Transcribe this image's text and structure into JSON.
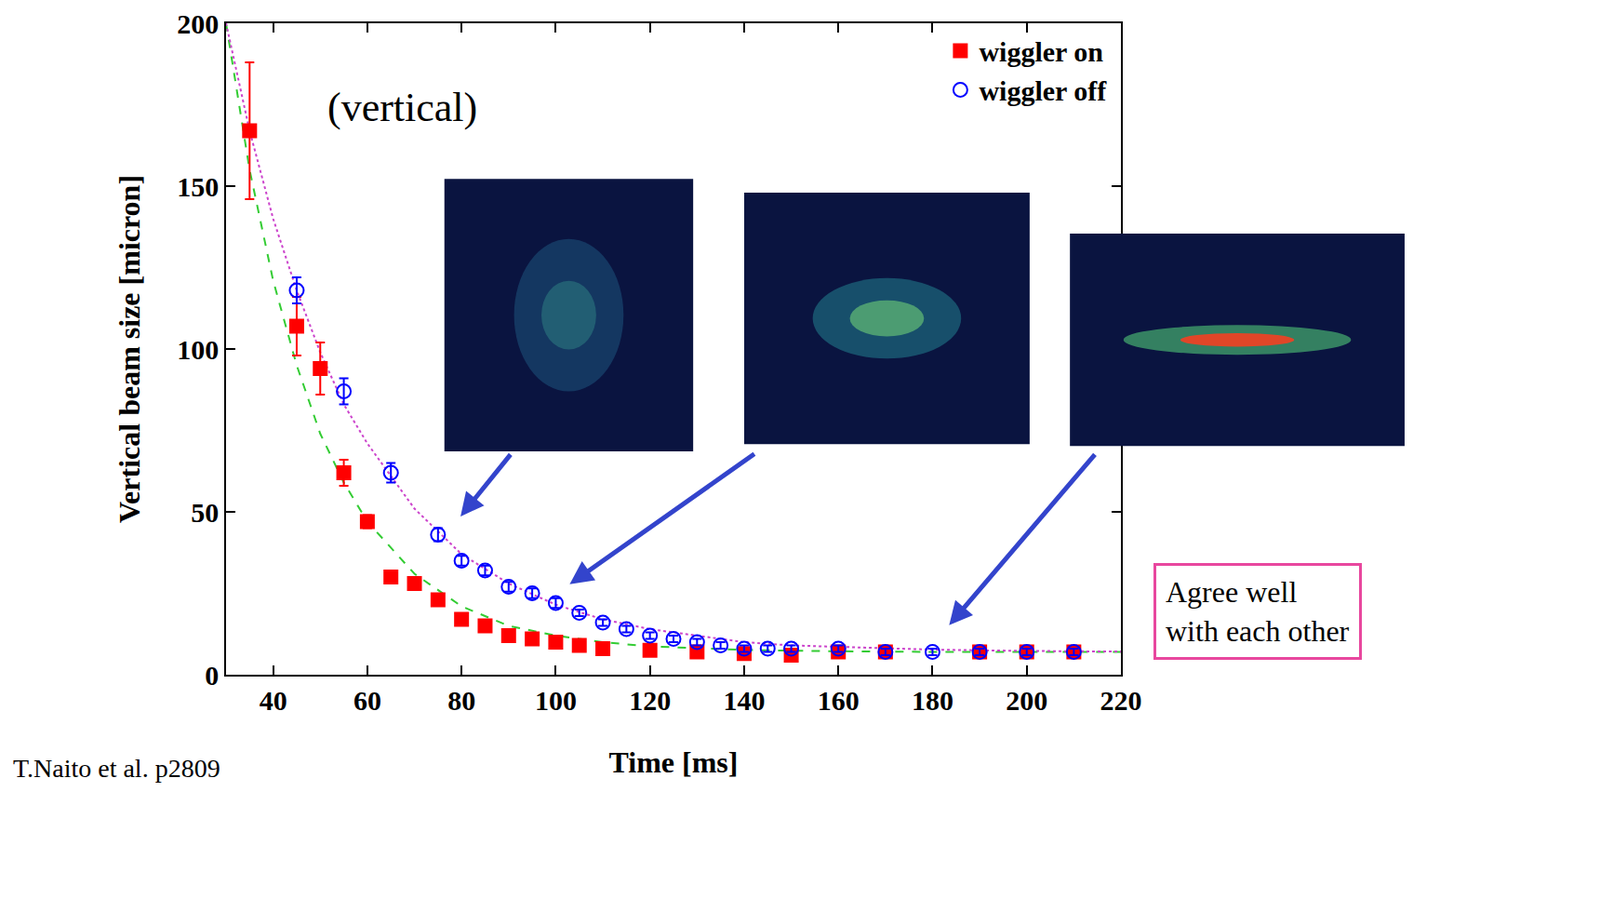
{
  "chart_data": {
    "type": "scatter",
    "x_label": "Time [ms]",
    "y_label": "Vertical beam size [micron]",
    "annotations": [
      "(vertical)",
      "Agree well with each other",
      "T.Naito et al. p2809"
    ],
    "xlim": [
      30,
      220
    ],
    "xticks": [
      40,
      60,
      80,
      100,
      120,
      140,
      160,
      180,
      200,
      220
    ],
    "ylim": [
      0,
      200
    ],
    "yticks": [
      0,
      50,
      100,
      150,
      200
    ],
    "grid": false,
    "legend": "upper right",
    "series": [
      {
        "name": "wiggler on",
        "type": "scatter",
        "color": "#ff0000",
        "marker": "square",
        "x": [
          35,
          45,
          50,
          55,
          60,
          65,
          70,
          75,
          80,
          85,
          90,
          95,
          100,
          105,
          110,
          120,
          130,
          140,
          150,
          160,
          170,
          190,
          200,
          210
        ],
        "values": [
          167,
          107,
          94,
          62,
          47,
          30,
          28,
          23,
          17,
          15,
          12,
          11,
          10,
          9,
          8,
          7.5,
          7,
          6.5,
          6,
          7,
          7,
          7,
          7,
          7
        ],
        "error": [
          21,
          9,
          8,
          4,
          2,
          1,
          1,
          1,
          1,
          1,
          1,
          1,
          1,
          1,
          1,
          1,
          1,
          1,
          1,
          1,
          1,
          1,
          1,
          1
        ]
      },
      {
        "name": "wiggler off",
        "type": "scatter",
        "color": "#0000ff",
        "marker": "circle-open",
        "x": [
          45,
          55,
          65,
          75,
          80,
          85,
          90,
          95,
          100,
          105,
          110,
          115,
          120,
          125,
          130,
          135,
          140,
          145,
          150,
          160,
          170,
          180,
          190,
          200,
          210
        ],
        "values": [
          118,
          87,
          62,
          43,
          35,
          32,
          27,
          25,
          22,
          19,
          16,
          14,
          12,
          11,
          10,
          9,
          8,
          8,
          8,
          8,
          7,
          7,
          7,
          7,
          7
        ],
        "error": [
          4,
          4,
          3,
          2,
          1.5,
          1.5,
          1.5,
          1.5,
          1.5,
          1,
          1,
          1,
          1,
          1,
          1,
          1,
          1,
          1,
          1,
          1,
          1,
          1,
          1,
          1,
          1
        ]
      },
      {
        "type": "line",
        "color": "#33cc33",
        "line_style": "dashed",
        "x": [
          30,
          35,
          40,
          45,
          50,
          55,
          60,
          70,
          80,
          90,
          100,
          110,
          120,
          140,
          160,
          180,
          220
        ],
        "values": [
          200,
          155,
          121,
          95,
          74,
          59,
          47,
          31,
          21,
          15,
          12,
          10,
          8.7,
          7.6,
          7.2,
          7,
          7
        ]
      },
      {
        "type": "line",
        "color": "#cc44cc",
        "line_style": "dotted",
        "x": [
          30,
          35,
          40,
          45,
          50,
          55,
          60,
          70,
          80,
          90,
          100,
          110,
          120,
          130,
          140,
          150,
          160,
          180,
          200,
          220
        ],
        "values": [
          200,
          167,
          140,
          118,
          99,
          83,
          71,
          51,
          37,
          28,
          21.5,
          17,
          14,
          12,
          10,
          9,
          8.6,
          7.7,
          7.3,
          7.1
        ]
      }
    ]
  }
}
